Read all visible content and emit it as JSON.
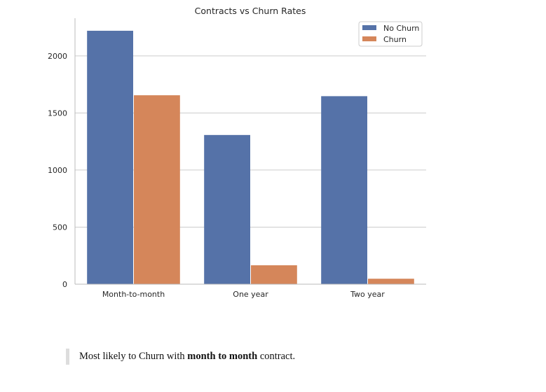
{
  "chart_data": {
    "type": "bar",
    "title": "Contracts vs Churn Rates",
    "xlabel": "",
    "ylabel": "",
    "categories": [
      "Month-to-month",
      "One year",
      "Two year"
    ],
    "series": [
      {
        "name": "No Churn",
        "values": [
          2220,
          1307,
          1647
        ]
      },
      {
        "name": "Churn",
        "values": [
          1655,
          166,
          48
        ]
      }
    ],
    "ylim": [
      0,
      2330
    ],
    "yticks": [
      0,
      500,
      1000,
      1500,
      2000
    ],
    "grid": true,
    "legend": "top-right",
    "colors": [
      "#5572a8",
      "#d5865a"
    ]
  },
  "note": {
    "prefix": "Most likely to Churn with ",
    "bold": "month to month",
    "suffix": " contract."
  }
}
